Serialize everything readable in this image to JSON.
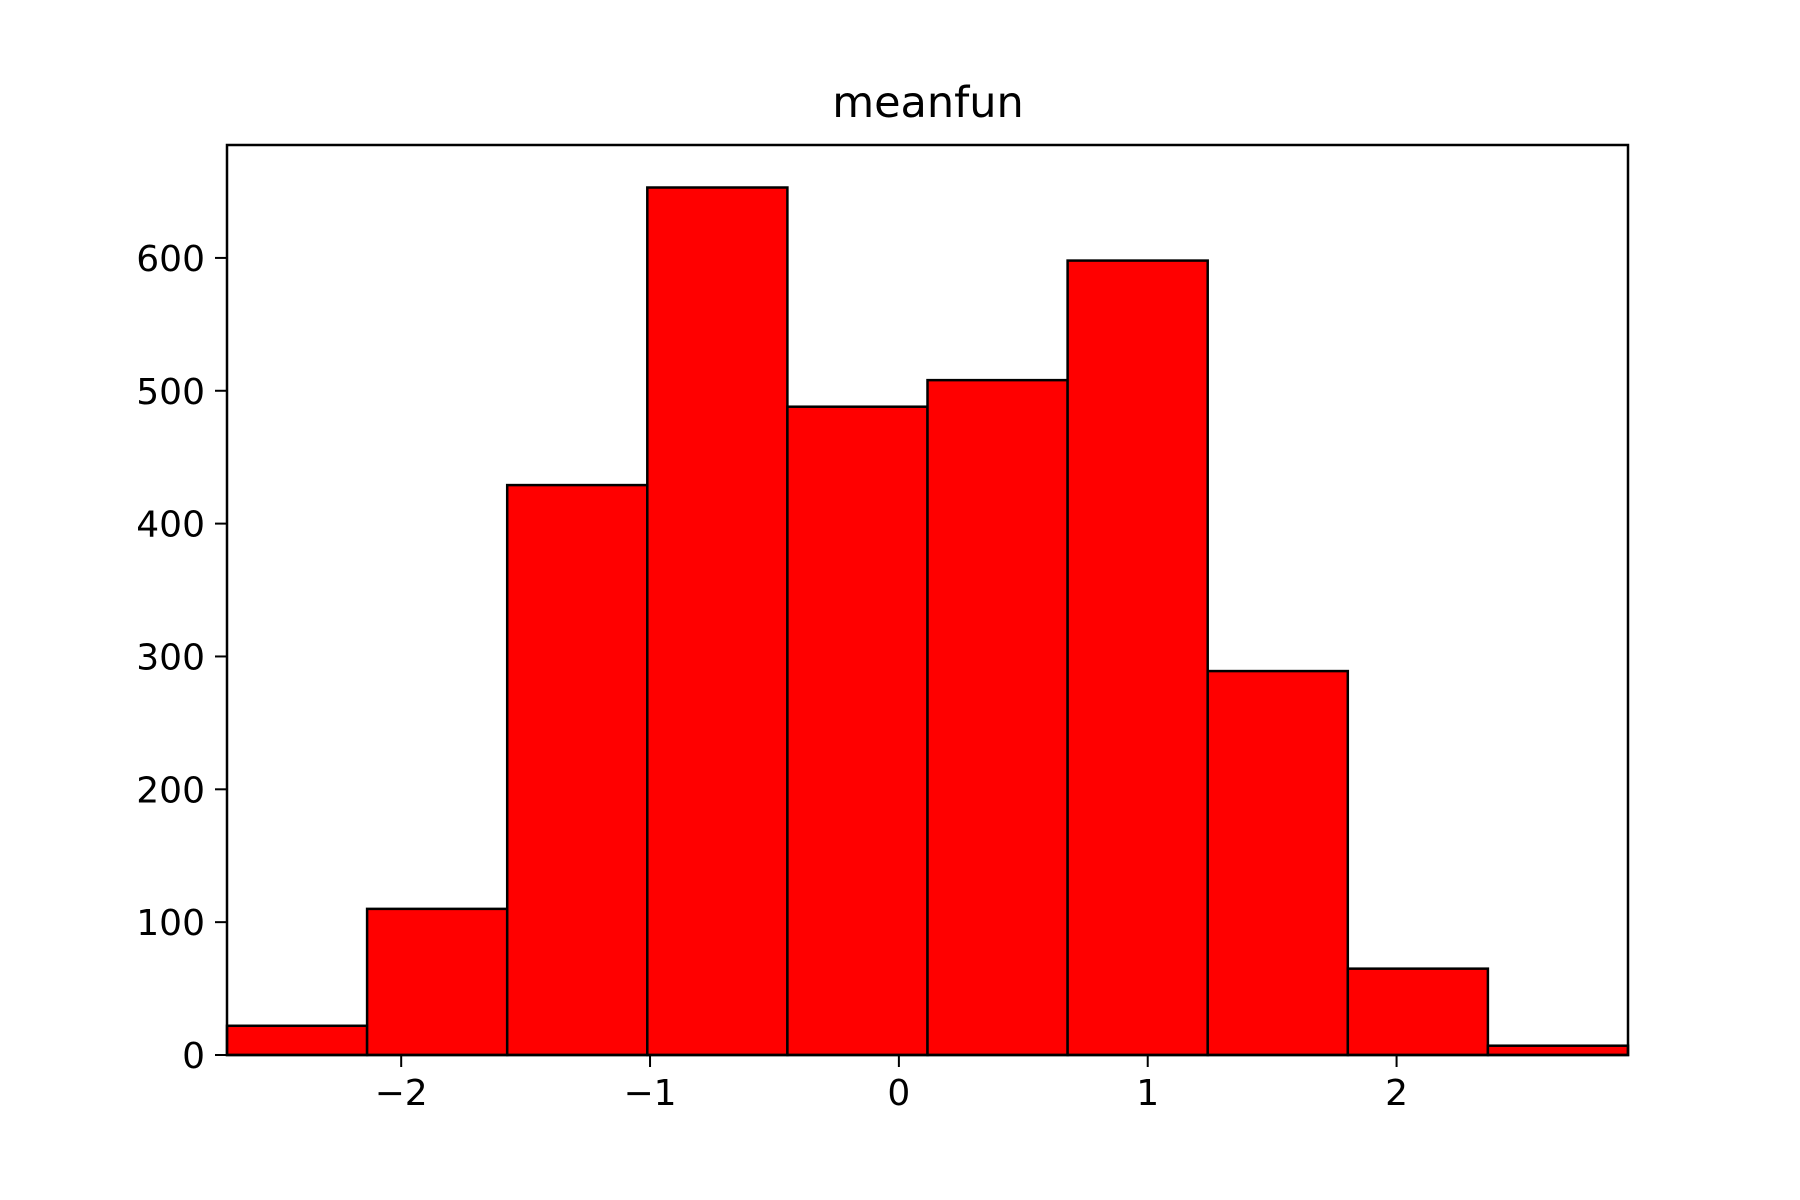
{
  "chart_data": {
    "type": "bar",
    "title": "meanfun",
    "xlabel": "",
    "ylabel": "",
    "bin_edges": [
      -2.7,
      -2.137,
      -1.574,
      -1.011,
      -0.448,
      0.115,
      0.678,
      1.241,
      1.804,
      2.367,
      2.93
    ],
    "values": [
      22,
      110,
      429,
      653,
      488,
      508,
      598,
      289,
      65,
      7
    ],
    "xlim": [
      -2.7,
      2.93
    ],
    "ylim": [
      0,
      685
    ],
    "xticks": [
      {
        "value": -2,
        "label": "−2"
      },
      {
        "value": -1,
        "label": "−1"
      },
      {
        "value": 0,
        "label": "0"
      },
      {
        "value": 1,
        "label": "1"
      },
      {
        "value": 2,
        "label": "2"
      }
    ],
    "yticks": [
      {
        "value": 0,
        "label": "0"
      },
      {
        "value": 100,
        "label": "100"
      },
      {
        "value": 200,
        "label": "200"
      },
      {
        "value": 300,
        "label": "300"
      },
      {
        "value": 400,
        "label": "400"
      },
      {
        "value": 500,
        "label": "500"
      },
      {
        "value": 600,
        "label": "600"
      }
    ],
    "grid": false,
    "bar_color": "#ff0000",
    "edge_color": "#000000"
  }
}
